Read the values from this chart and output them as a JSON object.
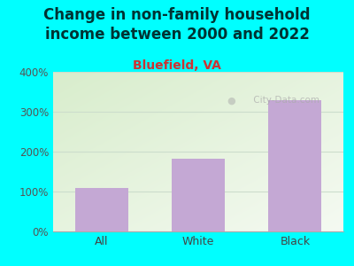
{
  "title": "Change in non-family household\nincome between 2000 and 2022",
  "subtitle": "Bluefield, VA",
  "categories": [
    "All",
    "White",
    "Black"
  ],
  "values": [
    110,
    182,
    328
  ],
  "bar_color": "#c4a8d4",
  "title_fontsize": 12,
  "subtitle_fontsize": 10,
  "subtitle_color": "#cc3333",
  "title_color": "#003333",
  "background_color": "#00ffff",
  "plot_bg_color_topleft": "#d8edcc",
  "plot_bg_color_bottomright": "#f0f8f0",
  "grid_color": "#ccddcc",
  "ylim": [
    0,
    400
  ],
  "yticks": [
    0,
    100,
    200,
    300,
    400
  ],
  "ytick_labels": [
    "0%",
    "100%",
    "200%",
    "300%",
    "400%"
  ],
  "watermark": " City-Data.com"
}
